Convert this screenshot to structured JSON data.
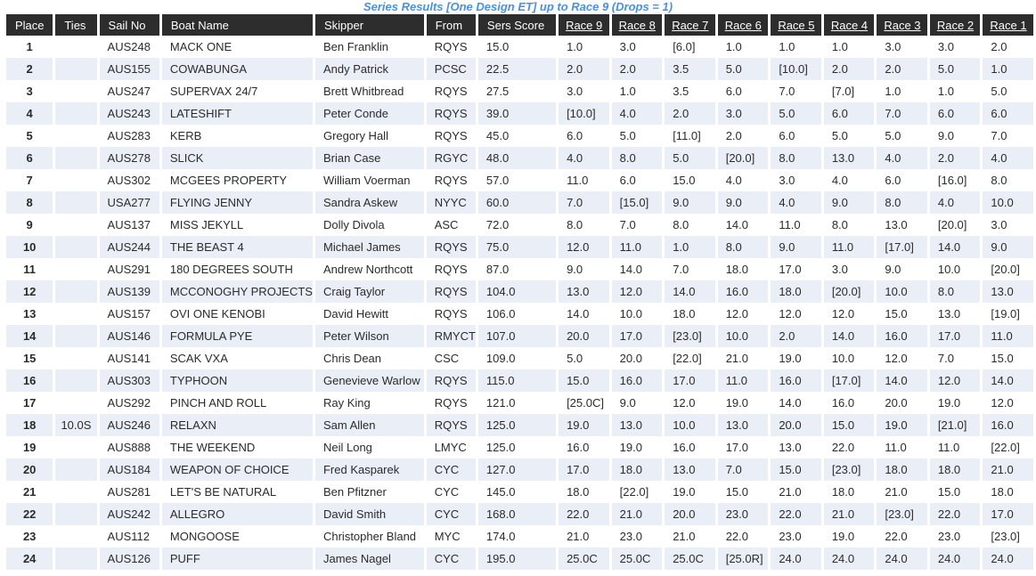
{
  "title": "Series Results [One Design ET] up to Race 9 (Drops = 1)",
  "colors": {
    "title": "#4a90e2",
    "header_bg": "#2d2d2d",
    "header_text": "#ffffff",
    "row_bg": "#ffffff",
    "row_alt_bg": "#e9eef7",
    "body_text": "#2b2b2b"
  },
  "table": {
    "columns": [
      {
        "label": "Place",
        "link": false
      },
      {
        "label": "Ties",
        "link": false
      },
      {
        "label": "Sail No",
        "link": false
      },
      {
        "label": "Boat Name",
        "link": false
      },
      {
        "label": "Skipper",
        "link": false
      },
      {
        "label": "From",
        "link": false
      },
      {
        "label": "Sers Score",
        "link": false
      },
      {
        "label": "Race 9",
        "link": true
      },
      {
        "label": "Race 8",
        "link": true
      },
      {
        "label": "Race 7",
        "link": true
      },
      {
        "label": "Race 6",
        "link": true
      },
      {
        "label": "Race 5",
        "link": true
      },
      {
        "label": "Race 4",
        "link": true
      },
      {
        "label": "Race 3",
        "link": true
      },
      {
        "label": "Race 2",
        "link": true
      },
      {
        "label": "Race 1",
        "link": true
      }
    ],
    "rows": [
      {
        "place": "1",
        "ties": "",
        "sail_no": "AUS248",
        "boat_name": "MACK ONE",
        "skipper": "Ben Franklin",
        "from": "RQYS",
        "score": "15.0",
        "races": [
          "1.0",
          "3.0",
          "[6.0]",
          "1.0",
          "1.0",
          "1.0",
          "3.0",
          "3.0",
          "2.0"
        ]
      },
      {
        "place": "2",
        "ties": "",
        "sail_no": "AUS155",
        "boat_name": "COWABUNGA",
        "skipper": "Andy Patrick",
        "from": "PCSC",
        "score": "22.5",
        "races": [
          "2.0",
          "2.0",
          "3.5",
          "5.0",
          "[10.0]",
          "2.0",
          "2.0",
          "5.0",
          "1.0"
        ]
      },
      {
        "place": "3",
        "ties": "",
        "sail_no": "AUS247",
        "boat_name": "SUPERVAX 24/7",
        "skipper": "Brett Whitbread",
        "from": "RQYS",
        "score": "27.5",
        "races": [
          "3.0",
          "1.0",
          "3.5",
          "6.0",
          "7.0",
          "[7.0]",
          "1.0",
          "1.0",
          "5.0"
        ]
      },
      {
        "place": "4",
        "ties": "",
        "sail_no": "AUS243",
        "boat_name": "LATESHIFT",
        "skipper": "Peter Conde",
        "from": "RQYS",
        "score": "39.0",
        "races": [
          "[10.0]",
          "4.0",
          "2.0",
          "3.0",
          "5.0",
          "6.0",
          "7.0",
          "6.0",
          "6.0"
        ]
      },
      {
        "place": "5",
        "ties": "",
        "sail_no": "AUS283",
        "boat_name": "KERB",
        "skipper": "Gregory Hall",
        "from": "RQYS",
        "score": "45.0",
        "races": [
          "6.0",
          "5.0",
          "[11.0]",
          "2.0",
          "6.0",
          "5.0",
          "5.0",
          "9.0",
          "7.0"
        ]
      },
      {
        "place": "6",
        "ties": "",
        "sail_no": "AUS278",
        "boat_name": "SLICK",
        "skipper": "Brian Case",
        "from": "RGYC",
        "score": "48.0",
        "races": [
          "4.0",
          "8.0",
          "5.0",
          "[20.0]",
          "8.0",
          "13.0",
          "4.0",
          "2.0",
          "4.0"
        ]
      },
      {
        "place": "7",
        "ties": "",
        "sail_no": "AUS302",
        "boat_name": "MCGEES PROPERTY",
        "skipper": "William Voerman",
        "from": "RQYS",
        "score": "57.0",
        "races": [
          "11.0",
          "6.0",
          "15.0",
          "4.0",
          "3.0",
          "4.0",
          "6.0",
          "[16.0]",
          "8.0"
        ]
      },
      {
        "place": "8",
        "ties": "",
        "sail_no": "USA277",
        "boat_name": "FLYING JENNY",
        "skipper": "Sandra Askew",
        "from": "NYYC",
        "score": "60.0",
        "races": [
          "7.0",
          "[15.0]",
          "9.0",
          "9.0",
          "4.0",
          "9.0",
          "8.0",
          "4.0",
          "10.0"
        ]
      },
      {
        "place": "9",
        "ties": "",
        "sail_no": "AUS137",
        "boat_name": "MISS JEKYLL",
        "skipper": "Dolly Divola",
        "from": "ASC",
        "score": "72.0",
        "races": [
          "8.0",
          "7.0",
          "8.0",
          "14.0",
          "11.0",
          "8.0",
          "13.0",
          "[20.0]",
          "3.0"
        ]
      },
      {
        "place": "10",
        "ties": "",
        "sail_no": "AUS244",
        "boat_name": "THE BEAST 4",
        "skipper": "Michael James",
        "from": "RQYS",
        "score": "75.0",
        "races": [
          "12.0",
          "11.0",
          "1.0",
          "8.0",
          "9.0",
          "11.0",
          "[17.0]",
          "14.0",
          "9.0"
        ]
      },
      {
        "place": "11",
        "ties": "",
        "sail_no": "AUS291",
        "boat_name": "180 DEGREES SOUTH",
        "skipper": "Andrew Northcott",
        "from": "RQYS",
        "score": "87.0",
        "races": [
          "9.0",
          "14.0",
          "7.0",
          "18.0",
          "17.0",
          "3.0",
          "9.0",
          "10.0",
          "[20.0]"
        ]
      },
      {
        "place": "12",
        "ties": "",
        "sail_no": "AUS139",
        "boat_name": "MCCONOGHY PROJECTS",
        "skipper": "Craig Taylor",
        "from": "RQYS",
        "score": "104.0",
        "races": [
          "13.0",
          "12.0",
          "14.0",
          "16.0",
          "18.0",
          "[20.0]",
          "10.0",
          "8.0",
          "13.0"
        ]
      },
      {
        "place": "13",
        "ties": "",
        "sail_no": "AUS157",
        "boat_name": "OVI ONE KENOBI",
        "skipper": "David Hewitt",
        "from": "RQYS",
        "score": "106.0",
        "races": [
          "14.0",
          "10.0",
          "18.0",
          "12.0",
          "12.0",
          "12.0",
          "15.0",
          "13.0",
          "[19.0]"
        ]
      },
      {
        "place": "14",
        "ties": "",
        "sail_no": "AUS146",
        "boat_name": "FORMULA PYE",
        "skipper": "Peter Wilson",
        "from": "RMYCT",
        "score": "107.0",
        "races": [
          "20.0",
          "17.0",
          "[23.0]",
          "10.0",
          "2.0",
          "14.0",
          "16.0",
          "17.0",
          "11.0"
        ]
      },
      {
        "place": "15",
        "ties": "",
        "sail_no": "AUS141",
        "boat_name": "SCAK VXA",
        "skipper": "Chris Dean",
        "from": "CSC",
        "score": "109.0",
        "races": [
          "5.0",
          "20.0",
          "[22.0]",
          "21.0",
          "19.0",
          "10.0",
          "12.0",
          "7.0",
          "15.0"
        ]
      },
      {
        "place": "16",
        "ties": "",
        "sail_no": "AUS303",
        "boat_name": "TYPHOON",
        "skipper": "Genevieve Warlow",
        "from": "RQYS",
        "score": "115.0",
        "races": [
          "15.0",
          "16.0",
          "17.0",
          "11.0",
          "16.0",
          "[17.0]",
          "14.0",
          "12.0",
          "14.0"
        ]
      },
      {
        "place": "17",
        "ties": "",
        "sail_no": "AUS292",
        "boat_name": "PINCH AND ROLL",
        "skipper": "Ray King",
        "from": "RQYS",
        "score": "121.0",
        "races": [
          "[25.0C]",
          "9.0",
          "12.0",
          "19.0",
          "14.0",
          "16.0",
          "20.0",
          "19.0",
          "12.0"
        ]
      },
      {
        "place": "18",
        "ties": "10.0S",
        "sail_no": "AUS246",
        "boat_name": "RELAXN",
        "skipper": "Sam Allen",
        "from": "RQYS",
        "score": "125.0",
        "races": [
          "19.0",
          "13.0",
          "10.0",
          "13.0",
          "20.0",
          "15.0",
          "19.0",
          "[21.0]",
          "16.0"
        ]
      },
      {
        "place": "19",
        "ties": "",
        "sail_no": "AUS888",
        "boat_name": "THE WEEKEND",
        "skipper": "Neil Long",
        "from": "LMYC",
        "score": "125.0",
        "races": [
          "16.0",
          "19.0",
          "16.0",
          "17.0",
          "13.0",
          "22.0",
          "11.0",
          "11.0",
          "[22.0]"
        ]
      },
      {
        "place": "20",
        "ties": "",
        "sail_no": "AUS184",
        "boat_name": "WEAPON OF CHOICE",
        "skipper": "Fred Kasparek",
        "from": "CYC",
        "score": "127.0",
        "races": [
          "17.0",
          "18.0",
          "13.0",
          "7.0",
          "15.0",
          "[23.0]",
          "18.0",
          "18.0",
          "21.0"
        ]
      },
      {
        "place": "21",
        "ties": "",
        "sail_no": "AUS281",
        "boat_name": "LET'S BE NATURAL",
        "skipper": "Ben Pfitzner",
        "from": "CYC",
        "score": "145.0",
        "races": [
          "18.0",
          "[22.0]",
          "19.0",
          "15.0",
          "21.0",
          "18.0",
          "21.0",
          "15.0",
          "18.0"
        ]
      },
      {
        "place": "22",
        "ties": "",
        "sail_no": "AUS242",
        "boat_name": "ALLEGRO",
        "skipper": "David Smith",
        "from": "CYC",
        "score": "168.0",
        "races": [
          "22.0",
          "21.0",
          "20.0",
          "23.0",
          "22.0",
          "21.0",
          "[23.0]",
          "22.0",
          "17.0"
        ]
      },
      {
        "place": "23",
        "ties": "",
        "sail_no": "AUS112",
        "boat_name": "MONGOOSE",
        "skipper": "Christopher Bland",
        "from": "MYC",
        "score": "174.0",
        "races": [
          "21.0",
          "23.0",
          "21.0",
          "22.0",
          "23.0",
          "19.0",
          "22.0",
          "23.0",
          "[23.0]"
        ]
      },
      {
        "place": "24",
        "ties": "",
        "sail_no": "AUS126",
        "boat_name": "PUFF",
        "skipper": "James Nagel",
        "from": "CYC",
        "score": "195.0",
        "races": [
          "25.0C",
          "25.0C",
          "25.0C",
          "[25.0R]",
          "24.0",
          "24.0",
          "24.0",
          "24.0",
          "24.0"
        ]
      }
    ]
  }
}
